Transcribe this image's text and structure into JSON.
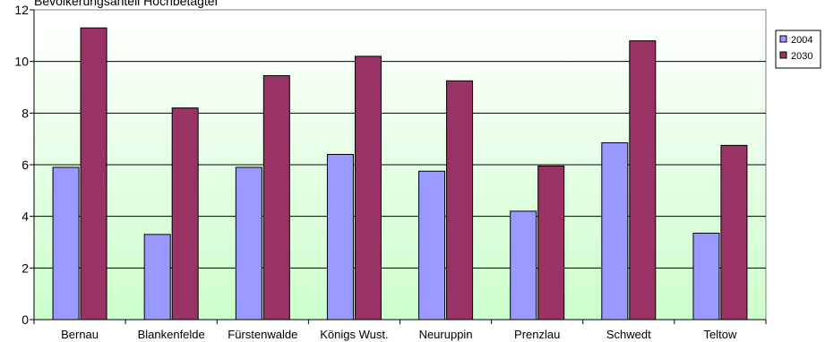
{
  "chart_data": {
    "type": "bar",
    "title": "Bevölkerungsanteil Hochbetagter",
    "categories": [
      "Bernau",
      "Blankenfelde",
      "Fürstenwalde",
      "Königs Wust.",
      "Neuruppin",
      "Prenzlau",
      "Schwedt",
      "Teltow"
    ],
    "series": [
      {
        "name": "2004",
        "values": [
          5.9,
          3.3,
          5.9,
          6.4,
          5.75,
          4.2,
          6.85,
          3.35
        ]
      },
      {
        "name": "2030",
        "values": [
          11.3,
          8.2,
          9.45,
          10.2,
          9.25,
          5.95,
          10.8,
          6.75
        ]
      }
    ],
    "ylim": [
      0,
      12
    ],
    "yticks": [
      0,
      2,
      4,
      6,
      8,
      10,
      12
    ],
    "xlabel": "",
    "ylabel": "",
    "grid": true,
    "legend_position": "right",
    "colors": {
      "2004": "#9999ff",
      "2030": "#993366",
      "plot_bg_top": "#ffffff",
      "plot_bg_bottom": "#ccffcc",
      "axis": "#000000"
    }
  }
}
